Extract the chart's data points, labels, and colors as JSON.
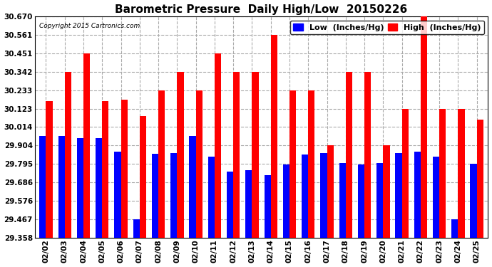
{
  "title": "Barometric Pressure  Daily High/Low  20150226",
  "copyright": "Copyright 2015 Cartronics.com",
  "legend_low": "Low  (Inches/Hg)",
  "legend_high": "High  (Inches/Hg)",
  "dates": [
    "02/02",
    "02/03",
    "02/04",
    "02/05",
    "02/06",
    "02/07",
    "02/08",
    "02/09",
    "02/10",
    "02/11",
    "02/12",
    "02/13",
    "02/14",
    "02/15",
    "02/16",
    "02/17",
    "02/18",
    "02/19",
    "02/20",
    "02/21",
    "02/22",
    "02/23",
    "02/24",
    "02/25"
  ],
  "low": [
    29.96,
    29.96,
    29.95,
    29.95,
    29.87,
    29.467,
    29.855,
    29.86,
    29.96,
    29.84,
    29.75,
    29.76,
    29.73,
    29.79,
    29.85,
    29.86,
    29.8,
    29.79,
    29.8,
    29.86,
    29.87,
    29.84,
    29.467,
    29.795
  ],
  "high": [
    30.17,
    30.342,
    30.451,
    30.17,
    30.175,
    30.08,
    30.233,
    30.342,
    30.233,
    30.451,
    30.342,
    30.342,
    30.56,
    30.233,
    30.233,
    29.904,
    30.342,
    30.342,
    29.904,
    30.123,
    30.67,
    30.123,
    30.123,
    30.06
  ],
  "ymin": 29.358,
  "ymax": 30.67,
  "yticks": [
    29.358,
    29.467,
    29.576,
    29.686,
    29.795,
    29.904,
    30.014,
    30.123,
    30.233,
    30.342,
    30.451,
    30.561,
    30.67
  ],
  "bar_width": 0.35,
  "low_color": "#0000ff",
  "high_color": "#ff0000",
  "bg_color": "#ffffff",
  "grid_color": "#aaaaaa",
  "title_fontsize": 11,
  "tick_fontsize": 7.5,
  "legend_fontsize": 8
}
